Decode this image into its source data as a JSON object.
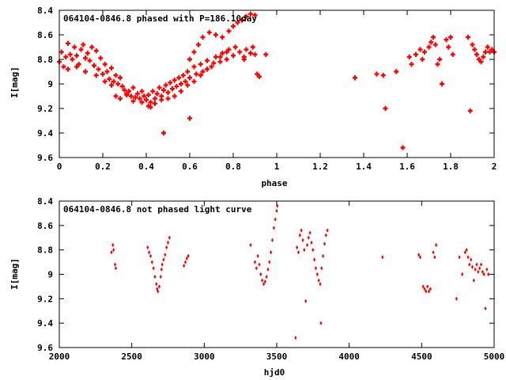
{
  "colors": {
    "points": "#ff0000",
    "axes": "#000000",
    "background": "#ffffff"
  },
  "chart_data": [
    {
      "type": "scatter",
      "title": "064104-0846.8 phased with P=186.10day",
      "xlabel": "phase",
      "ylabel": "I[mag]",
      "xlim": [
        0,
        2
      ],
      "ylim": [
        9.6,
        8.4
      ],
      "y_inverted": true,
      "grid": false,
      "marker": "cross",
      "xticks": [
        "0",
        "0.2",
        "0.4",
        "0.6",
        "0.8",
        "1",
        "1.2",
        "1.4",
        "1.6",
        "1.8",
        "2"
      ],
      "yticks": [
        "8.4",
        "8.6",
        "8.8",
        "9",
        "9.2",
        "9.4",
        "9.6"
      ],
      "series": [
        {
          "points": [
            [
              0.0,
              8.82
            ],
            [
              0.01,
              8.74
            ],
            [
              0.02,
              8.86
            ],
            [
              0.03,
              8.78
            ],
            [
              0.04,
              8.67
            ],
            [
              0.05,
              8.76
            ],
            [
              0.06,
              8.8
            ],
            [
              0.07,
              8.7
            ],
            [
              0.08,
              8.77
            ],
            [
              0.09,
              8.84
            ],
            [
              0.1,
              8.72
            ],
            [
              0.11,
              8.68
            ],
            [
              0.12,
              8.79
            ],
            [
              0.13,
              8.75
            ],
            [
              0.14,
              8.81
            ],
            [
              0.15,
              8.7
            ],
            [
              0.16,
              8.85
            ],
            [
              0.17,
              8.73
            ],
            [
              0.18,
              8.88
            ],
            [
              0.19,
              8.79
            ],
            [
              0.2,
              8.92
            ],
            [
              0.21,
              8.84
            ],
            [
              0.22,
              8.9
            ],
            [
              0.23,
              8.96
            ],
            [
              0.24,
              8.87
            ],
            [
              0.25,
              8.98
            ],
            [
              0.26,
              8.93
            ],
            [
              0.27,
              9.0
            ],
            [
              0.28,
              8.95
            ],
            [
              0.29,
              9.02
            ],
            [
              0.3,
              9.05
            ],
            [
              0.31,
              9.08
            ],
            [
              0.32,
              9.06
            ],
            [
              0.33,
              9.1
            ],
            [
              0.34,
              9.03
            ],
            [
              0.35,
              9.11
            ],
            [
              0.36,
              9.08
            ],
            [
              0.37,
              9.12
            ],
            [
              0.38,
              9.06
            ],
            [
              0.39,
              9.1
            ],
            [
              0.4,
              9.13
            ],
            [
              0.41,
              9.09
            ],
            [
              0.42,
              9.15
            ],
            [
              0.43,
              9.06
            ],
            [
              0.44,
              9.12
            ],
            [
              0.45,
              9.08
            ],
            [
              0.46,
              9.03
            ],
            [
              0.47,
              9.1
            ],
            [
              0.48,
              9.05
            ],
            [
              0.49,
              9.01
            ],
            [
              0.5,
              9.07
            ],
            [
              0.51,
              8.99
            ],
            [
              0.52,
              9.04
            ],
            [
              0.53,
              8.97
            ],
            [
              0.54,
              9.02
            ],
            [
              0.55,
              8.95
            ],
            [
              0.56,
              9.0
            ],
            [
              0.57,
              8.93
            ],
            [
              0.58,
              8.98
            ],
            [
              0.59,
              8.9
            ],
            [
              0.6,
              8.95
            ],
            [
              0.62,
              8.86
            ],
            [
              0.63,
              8.92
            ],
            [
              0.65,
              8.84
            ],
            [
              0.66,
              8.9
            ],
            [
              0.68,
              8.81
            ],
            [
              0.7,
              8.86
            ],
            [
              0.72,
              8.78
            ],
            [
              0.74,
              8.82
            ],
            [
              0.75,
              8.75
            ],
            [
              0.77,
              8.8
            ],
            [
              0.78,
              8.72
            ],
            [
              0.8,
              8.77
            ],
            [
              0.81,
              8.7
            ],
            [
              0.83,
              8.74
            ],
            [
              0.85,
              8.78
            ],
            [
              0.86,
              8.72
            ],
            [
              0.88,
              8.75
            ],
            [
              0.89,
              8.7
            ],
            [
              0.9,
              8.76
            ],
            [
              0.26,
              9.1
            ],
            [
              0.28,
              9.12
            ],
            [
              0.31,
              9.09
            ],
            [
              0.34,
              9.14
            ],
            [
              0.38,
              9.15
            ],
            [
              0.41,
              9.18
            ],
            [
              0.44,
              9.16
            ],
            [
              0.47,
              9.13
            ],
            [
              0.5,
              9.12
            ],
            [
              0.53,
              9.1
            ],
            [
              0.56,
              9.06
            ],
            [
              0.59,
              9.01
            ],
            [
              0.62,
              8.98
            ],
            [
              0.65,
              8.93
            ],
            [
              0.68,
              8.88
            ],
            [
              0.71,
              8.83
            ],
            [
              0.74,
              8.78
            ],
            [
              0.77,
              8.74
            ],
            [
              0.04,
              8.88
            ],
            [
              0.08,
              8.86
            ],
            [
              0.12,
              8.9
            ],
            [
              0.17,
              8.93
            ],
            [
              0.21,
              8.98
            ],
            [
              0.24,
              9.01
            ],
            [
              0.6,
              8.8
            ],
            [
              0.62,
              8.74
            ],
            [
              0.64,
              8.68
            ],
            [
              0.66,
              8.62
            ],
            [
              0.69,
              8.58
            ],
            [
              0.72,
              8.6
            ],
            [
              0.75,
              8.62
            ],
            [
              0.78,
              8.57
            ],
            [
              0.8,
              8.53
            ],
            [
              0.82,
              8.5
            ],
            [
              0.84,
              8.48
            ],
            [
              0.86,
              8.45
            ],
            [
              0.88,
              8.43
            ],
            [
              0.9,
              8.44
            ],
            [
              0.42,
              9.19
            ],
            [
              0.48,
              9.4
            ],
            [
              0.6,
              9.28
            ],
            [
              0.85,
              8.8
            ],
            [
              0.91,
              8.92
            ],
            [
              0.92,
              8.94
            ],
            [
              0.95,
              8.76
            ],
            [
              1.36,
              8.95
            ],
            [
              1.46,
              8.92
            ],
            [
              1.49,
              8.93
            ],
            [
              1.5,
              9.2
            ],
            [
              1.55,
              8.9
            ],
            [
              1.58,
              9.52
            ],
            [
              1.61,
              8.78
            ],
            [
              1.62,
              8.84
            ],
            [
              1.64,
              8.76
            ],
            [
              1.66,
              8.72
            ],
            [
              1.67,
              8.8
            ],
            [
              1.68,
              8.74
            ],
            [
              1.7,
              8.7
            ],
            [
              1.71,
              8.66
            ],
            [
              1.72,
              8.62
            ],
            [
              1.73,
              8.68
            ],
            [
              1.74,
              8.84
            ],
            [
              1.75,
              8.8
            ],
            [
              1.76,
              9.0
            ],
            [
              1.78,
              8.64
            ],
            [
              1.79,
              8.7
            ],
            [
              1.8,
              8.62
            ],
            [
              1.81,
              8.76
            ],
            [
              1.88,
              8.62
            ],
            [
              1.89,
              9.22
            ],
            [
              1.9,
              8.68
            ],
            [
              1.91,
              8.72
            ],
            [
              1.92,
              8.76
            ],
            [
              1.93,
              8.8
            ],
            [
              1.94,
              8.82
            ],
            [
              1.95,
              8.78
            ],
            [
              1.96,
              8.74
            ],
            [
              1.97,
              8.7
            ],
            [
              1.98,
              8.74
            ],
            [
              1.99,
              8.72
            ],
            [
              2.0,
              8.74
            ]
          ]
        }
      ]
    },
    {
      "type": "scatter",
      "title": "064104-0846.8 not phased light curve",
      "xlabel": "hjd0",
      "ylabel": "I[mag]",
      "xlim": [
        2000,
        5000
      ],
      "ylim": [
        9.6,
        8.4
      ],
      "y_inverted": true,
      "grid": false,
      "marker": "diamond",
      "xticks": [
        "2000",
        "2500",
        "3000",
        "3500",
        "4000",
        "4500",
        "5000"
      ],
      "yticks": [
        "8.4",
        "8.6",
        "8.8",
        "9",
        "9.2",
        "9.4",
        "9.6"
      ],
      "series": [
        {
          "points": [
            [
              2360,
              8.82
            ],
            [
              2370,
              8.76
            ],
            [
              2375,
              8.8
            ],
            [
              2385,
              8.92
            ],
            [
              2390,
              8.95
            ],
            [
              2610,
              8.78
            ],
            [
              2620,
              8.82
            ],
            [
              2630,
              8.85
            ],
            [
              2640,
              8.9
            ],
            [
              2650,
              8.95
            ],
            [
              2660,
              9.02
            ],
            [
              2670,
              9.08
            ],
            [
              2675,
              9.12
            ],
            [
              2680,
              9.14
            ],
            [
              2690,
              9.1
            ],
            [
              2700,
              9.02
            ],
            [
              2705,
              8.96
            ],
            [
              2710,
              8.92
            ],
            [
              2720,
              8.88
            ],
            [
              2730,
              8.84
            ],
            [
              2740,
              8.78
            ],
            [
              2750,
              8.74
            ],
            [
              2760,
              8.7
            ],
            [
              2860,
              8.93
            ],
            [
              2870,
              8.9
            ],
            [
              2880,
              8.87
            ],
            [
              2890,
              8.85
            ],
            [
              3320,
              8.76
            ],
            [
              3350,
              8.9
            ],
            [
              3360,
              8.95
            ],
            [
              3370,
              8.85
            ],
            [
              3380,
              8.92
            ],
            [
              3390,
              9.0
            ],
            [
              3400,
              9.05
            ],
            [
              3410,
              9.08
            ],
            [
              3420,
              9.06
            ],
            [
              3430,
              9.02
            ],
            [
              3440,
              8.96
            ],
            [
              3450,
              8.9
            ],
            [
              3460,
              8.82
            ],
            [
              3470,
              8.72
            ],
            [
              3480,
              8.62
            ],
            [
              3490,
              8.55
            ],
            [
              3500,
              8.48
            ],
            [
              3505,
              8.44
            ],
            [
              3630,
              9.52
            ],
            [
              3640,
              8.78
            ],
            [
              3650,
              8.82
            ],
            [
              3660,
              8.68
            ],
            [
              3670,
              8.64
            ],
            [
              3680,
              8.72
            ],
            [
              3690,
              8.8
            ],
            [
              3700,
              9.22
            ],
            [
              3710,
              8.76
            ],
            [
              3720,
              8.7
            ],
            [
              3730,
              8.66
            ],
            [
              3740,
              8.74
            ],
            [
              3750,
              8.8
            ],
            [
              3760,
              8.88
            ],
            [
              3770,
              8.95
            ],
            [
              3780,
              9.0
            ],
            [
              3790,
              9.05
            ],
            [
              3800,
              9.08
            ],
            [
              3805,
              9.4
            ],
            [
              3810,
              8.95
            ],
            [
              3820,
              8.85
            ],
            [
              3830,
              8.75
            ],
            [
              3840,
              8.68
            ],
            [
              3850,
              8.64
            ],
            [
              4230,
              8.86
            ],
            [
              4480,
              8.84
            ],
            [
              4490,
              8.86
            ],
            [
              4510,
              9.1
            ],
            [
              4520,
              9.12
            ],
            [
              4530,
              9.14
            ],
            [
              4540,
              9.1
            ],
            [
              4550,
              9.14
            ],
            [
              4560,
              9.12
            ],
            [
              4580,
              8.82
            ],
            [
              4590,
              8.86
            ],
            [
              4600,
              8.76
            ],
            [
              4740,
              9.2
            ],
            [
              4760,
              8.86
            ],
            [
              4780,
              9.0
            ],
            [
              4800,
              8.82
            ],
            [
              4810,
              8.8
            ],
            [
              4820,
              8.86
            ],
            [
              4830,
              8.92
            ],
            [
              4840,
              8.88
            ],
            [
              4850,
              8.94
            ],
            [
              4860,
              9.05
            ],
            [
              4870,
              8.96
            ],
            [
              4880,
              8.92
            ],
            [
              4890,
              8.98
            ],
            [
              4900,
              8.95
            ],
            [
              4910,
              8.92
            ],
            [
              4920,
              8.98
            ],
            [
              4930,
              9.0
            ],
            [
              4940,
              9.28
            ],
            [
              4950,
              8.96
            ],
            [
              4960,
              9.0
            ]
          ]
        }
      ]
    }
  ]
}
